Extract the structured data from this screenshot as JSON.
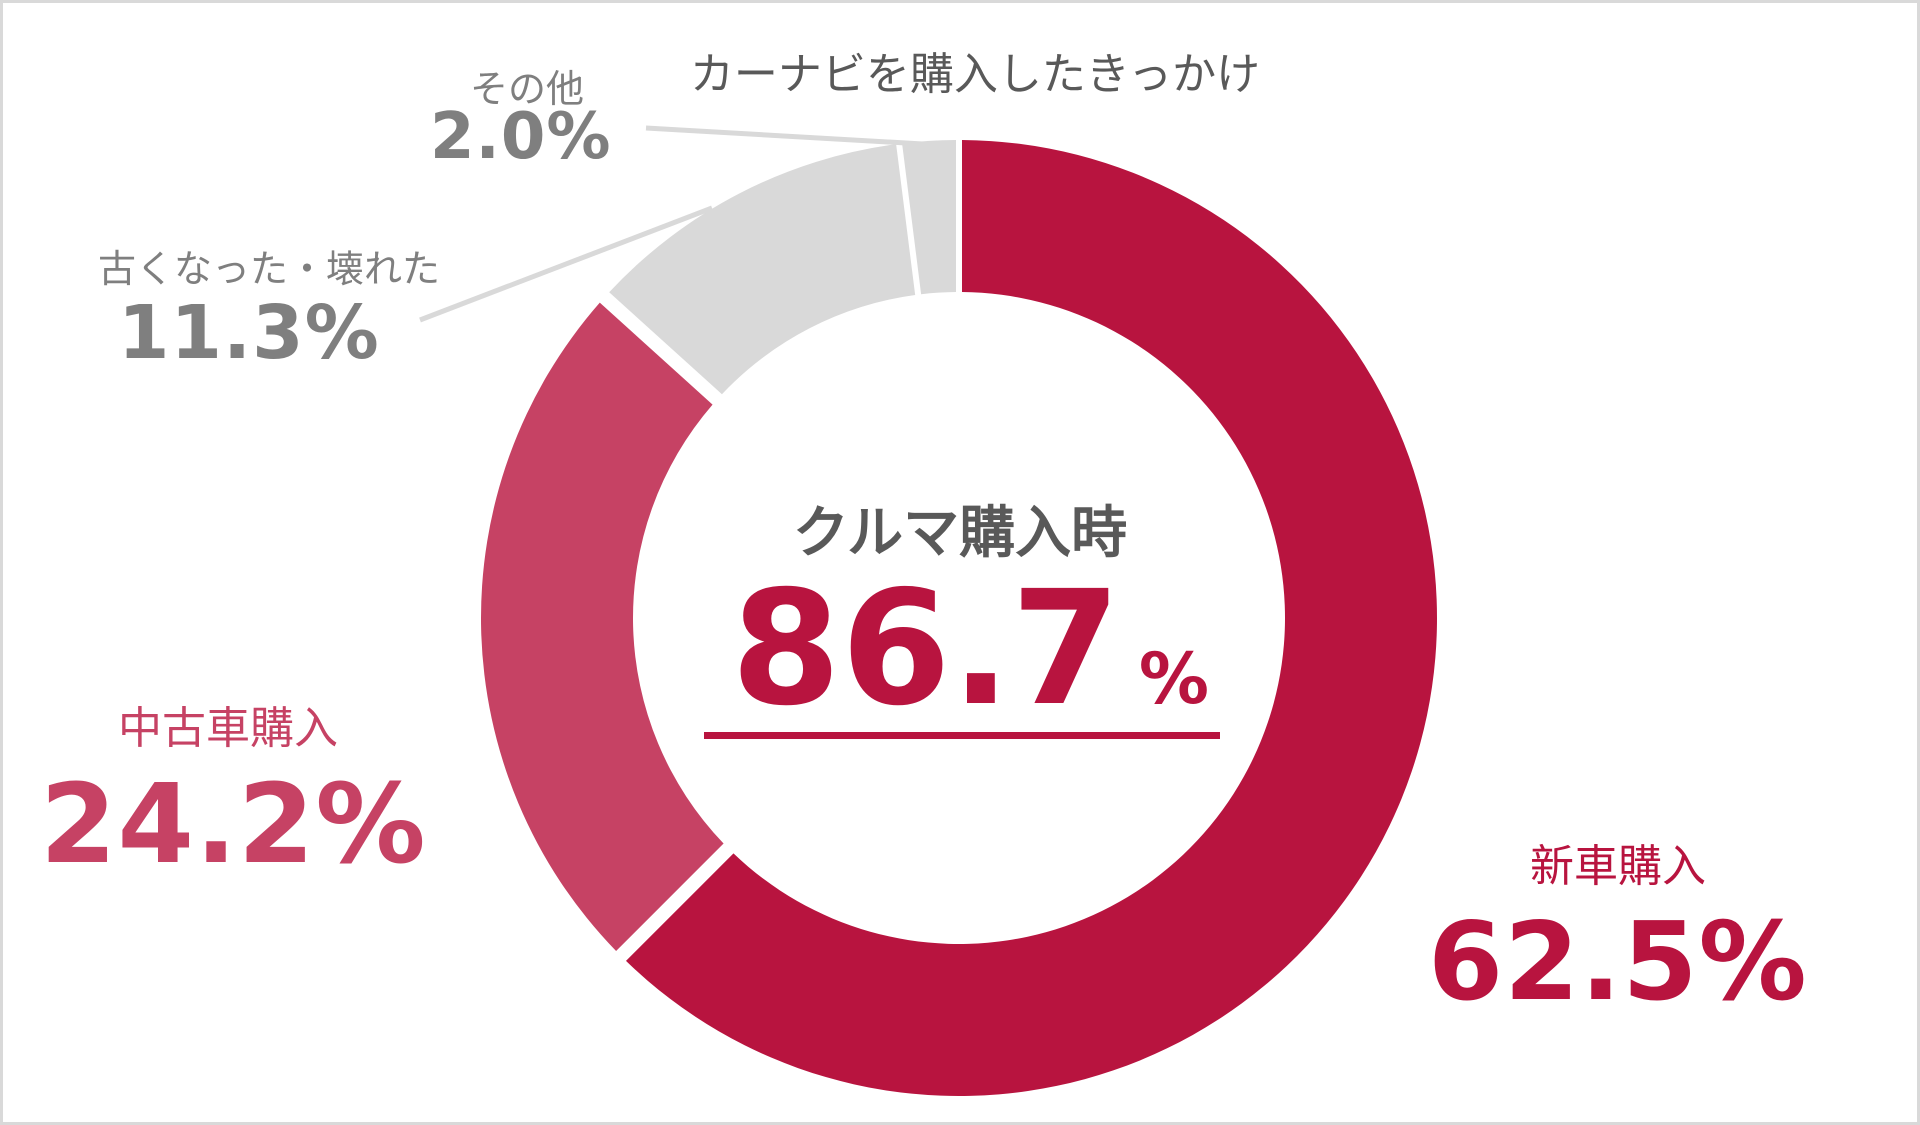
{
  "chart_data": {
    "type": "pie",
    "variant": "donut",
    "title": "カーナビを購入したきっかけ",
    "start_angle": "12 o'clock, clockwise",
    "categories": [
      "新車購入",
      "中古車購入",
      "古くなった・壊れた",
      "その他"
    ],
    "values": [
      62.5,
      24.2,
      11.3,
      2.0
    ],
    "unit": "%",
    "colors": [
      "#b8143f",
      "#c64264",
      "#d9d9d9",
      "#d9d9d9"
    ],
    "center_annotation": {
      "label": "クルマ購入時",
      "value": 86.7,
      "unit": "%",
      "note": "新車購入 + 中古車購入"
    },
    "legend": "none (direct labels)"
  },
  "title": "カーナビを購入したきっかけ",
  "center": {
    "label": "クルマ購入時",
    "value": "86.7",
    "unit": "%"
  },
  "labels": {
    "new_car": {
      "name": "新車購入",
      "value": "62.5%"
    },
    "used_car": {
      "name": "中古車購入",
      "value": "24.2%"
    },
    "old_broken": {
      "name": "古くなった・壊れた",
      "value": "11.3%"
    },
    "other": {
      "name": "その他",
      "value": "2.0%"
    }
  },
  "colors": {
    "new_car": "#b8143f",
    "used_car": "#c64264",
    "others": "#d9d9d9",
    "label_gray": "#7f7f7f",
    "title_gray": "#595959"
  }
}
